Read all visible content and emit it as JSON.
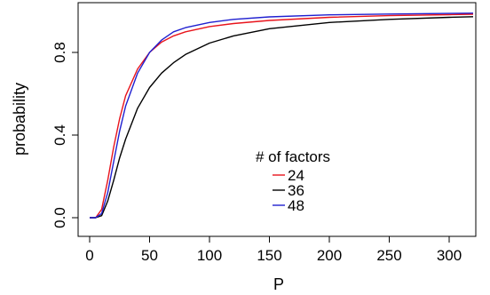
{
  "chart_data": {
    "type": "line",
    "xlabel": "P",
    "ylabel": "probability",
    "xlim": [
      0,
      320
    ],
    "ylim": [
      0,
      1
    ],
    "x_ticks": [
      0,
      50,
      100,
      150,
      200,
      250,
      300
    ],
    "x_tick_labels": [
      "0",
      "50",
      "100",
      "150",
      "200",
      "250",
      "300"
    ],
    "y_ticks": [
      0,
      0.4,
      0.8
    ],
    "y_tick_labels": [
      "0.0",
      "0.4",
      "0.8"
    ],
    "grid": false,
    "legend": {
      "title": "# of factors",
      "placement": "bottom-center"
    },
    "series": [
      {
        "name": "24",
        "color": "#e8141c",
        "x": [
          0,
          5,
          10,
          15,
          20,
          25,
          30,
          40,
          50,
          60,
          70,
          80,
          100,
          120,
          150,
          200,
          250,
          300,
          320
        ],
        "y": [
          0.0,
          0.0,
          0.04,
          0.18,
          0.34,
          0.48,
          0.59,
          0.72,
          0.8,
          0.85,
          0.88,
          0.9,
          0.925,
          0.94,
          0.955,
          0.97,
          0.978,
          0.983,
          0.985
        ]
      },
      {
        "name": "36",
        "color": "#000000",
        "x": [
          0,
          5,
          10,
          15,
          20,
          25,
          30,
          40,
          50,
          60,
          70,
          80,
          100,
          120,
          150,
          200,
          250,
          300,
          320
        ],
        "y": [
          0.0,
          0.0,
          0.01,
          0.08,
          0.18,
          0.29,
          0.38,
          0.53,
          0.63,
          0.7,
          0.75,
          0.79,
          0.845,
          0.88,
          0.915,
          0.945,
          0.96,
          0.97,
          0.973
        ]
      },
      {
        "name": "48",
        "color": "#2020d0",
        "x": [
          0,
          5,
          10,
          15,
          20,
          25,
          30,
          40,
          50,
          60,
          70,
          80,
          100,
          120,
          150,
          200,
          250,
          300,
          320
        ],
        "y": [
          0.0,
          0.0,
          0.02,
          0.12,
          0.27,
          0.42,
          0.54,
          0.7,
          0.8,
          0.86,
          0.9,
          0.92,
          0.945,
          0.96,
          0.972,
          0.982,
          0.986,
          0.989,
          0.99
        ]
      }
    ]
  }
}
